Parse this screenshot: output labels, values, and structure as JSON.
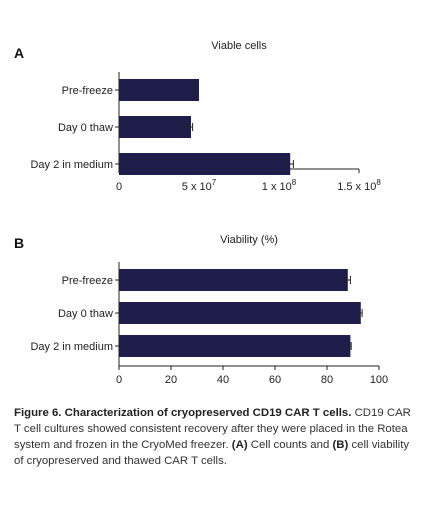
{
  "chart_data": [
    {
      "panel": "A",
      "type": "bar",
      "orientation": "horizontal",
      "title": "Viable cells",
      "categories": [
        "Pre-freeze",
        "Day 0 thaw",
        "Day 2 in medium"
      ],
      "values": [
        50000000,
        45000000,
        107000000
      ],
      "errors": [
        0,
        1000000,
        2000000
      ],
      "xlim": [
        0,
        150000000
      ],
      "ticks": [
        {
          "value": 0,
          "base": "0",
          "exp": ""
        },
        {
          "value": 50000000,
          "base": "5 x 10",
          "exp": "7"
        },
        {
          "value": 100000000,
          "base": "1 x 10",
          "exp": "8"
        },
        {
          "value": 150000000,
          "base": "1.5 x 10",
          "exp": "8"
        }
      ],
      "bar_color": "#1f1d4a",
      "grid": false
    },
    {
      "panel": "B",
      "type": "bar",
      "orientation": "horizontal",
      "title": "Viability (%)",
      "categories": [
        "Pre-freeze",
        "Day 0 thaw",
        "Day 2 in medium"
      ],
      "values": [
        88,
        93,
        89
      ],
      "errors": [
        1,
        0.5,
        0.3
      ],
      "xlim": [
        0,
        100
      ],
      "ticks": [
        {
          "value": 0,
          "base": "0",
          "exp": ""
        },
        {
          "value": 20,
          "base": "20",
          "exp": ""
        },
        {
          "value": 40,
          "base": "40",
          "exp": ""
        },
        {
          "value": 60,
          "base": "60",
          "exp": ""
        },
        {
          "value": 80,
          "base": "80",
          "exp": ""
        },
        {
          "value": 100,
          "base": "100",
          "exp": ""
        }
      ],
      "bar_color": "#1f1d4a",
      "grid": false
    }
  ],
  "caption": {
    "title": "Figure 6. Characterization of cryopreserved CD19 CAR T cells.",
    "text1": " CD19 CAR T cell cultures showed consistent recovery after they were placed in the Rotea system and frozen in the CryoMed freezer. ",
    "label_a": "(A)",
    "text2": " Cell counts and ",
    "label_b": "(B)",
    "text3": " cell viability of cryopreserved and thawed CAR T cells."
  }
}
